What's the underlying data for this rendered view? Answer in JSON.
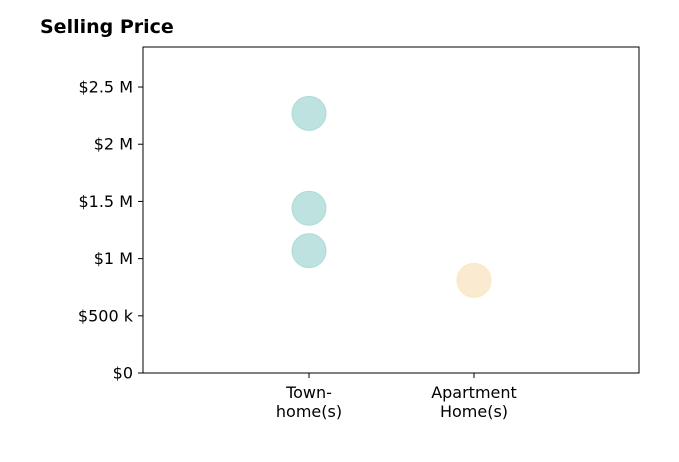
{
  "chart_data": {
    "type": "scatter",
    "title": "Selling Price",
    "xlabel": "",
    "ylabel": "",
    "categories": [
      [
        "Town-",
        "home(s)"
      ],
      [
        "Apartment",
        "Home(s)"
      ]
    ],
    "ylim": [
      0,
      2850000
    ],
    "y_ticks": [
      0,
      500000,
      1000000,
      1500000,
      2000000,
      2500000
    ],
    "y_tick_labels": [
      "$0",
      "$500 k",
      "$1 M",
      "$1.5 M",
      "$2 M",
      "$2.5 M"
    ],
    "grid": false,
    "points": [
      {
        "category": 0,
        "y": 2270000,
        "color": "#a8d8d4"
      },
      {
        "category": 0,
        "y": 1440000,
        "color": "#a8d8d4"
      },
      {
        "category": 0,
        "y": 1070000,
        "color": "#a8d8d4"
      },
      {
        "category": 1,
        "y": 810000,
        "color": "#f8e4c0"
      }
    ]
  }
}
